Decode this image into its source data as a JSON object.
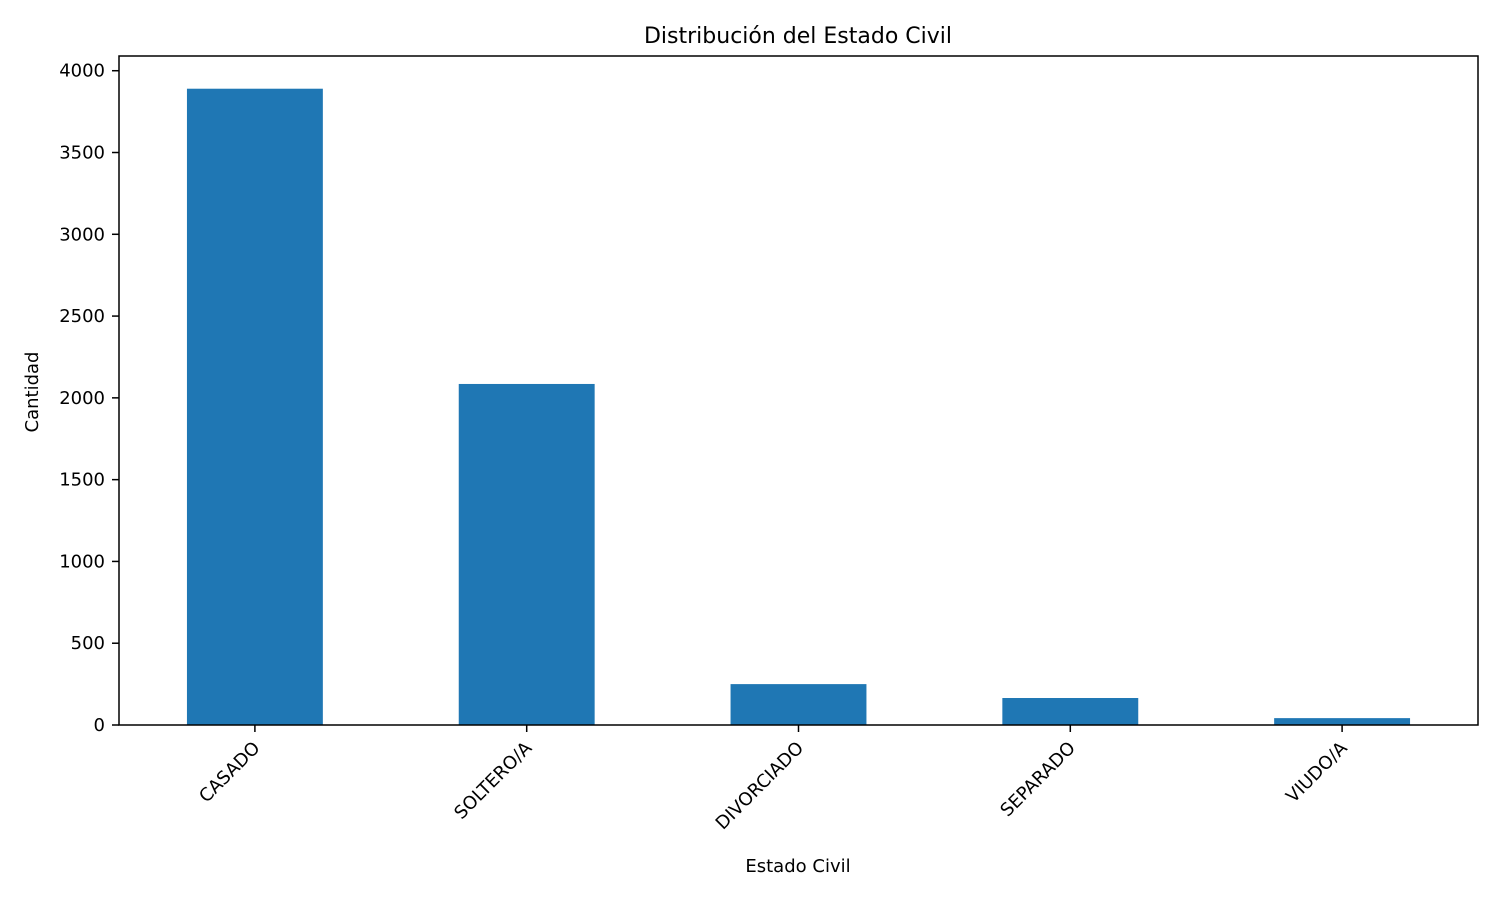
{
  "chart_data": {
    "type": "bar",
    "title": "Distribución del Estado Civil",
    "xlabel": "Estado Civil",
    "ylabel": "Cantidad",
    "categories": [
      "CASADO",
      "SOLTERO/A",
      "DIVORCIADO",
      "SEPARADO",
      "VIUDO/A"
    ],
    "values": [
      3890,
      2085,
      250,
      165,
      42
    ],
    "ylim": [
      0,
      4090
    ],
    "yticks": [
      0,
      500,
      1000,
      1500,
      2000,
      2500,
      3000,
      3500,
      4000
    ],
    "grid": false,
    "legend": "none",
    "colors": {
      "bar": "#1f77b4",
      "axis": "#000000"
    }
  }
}
